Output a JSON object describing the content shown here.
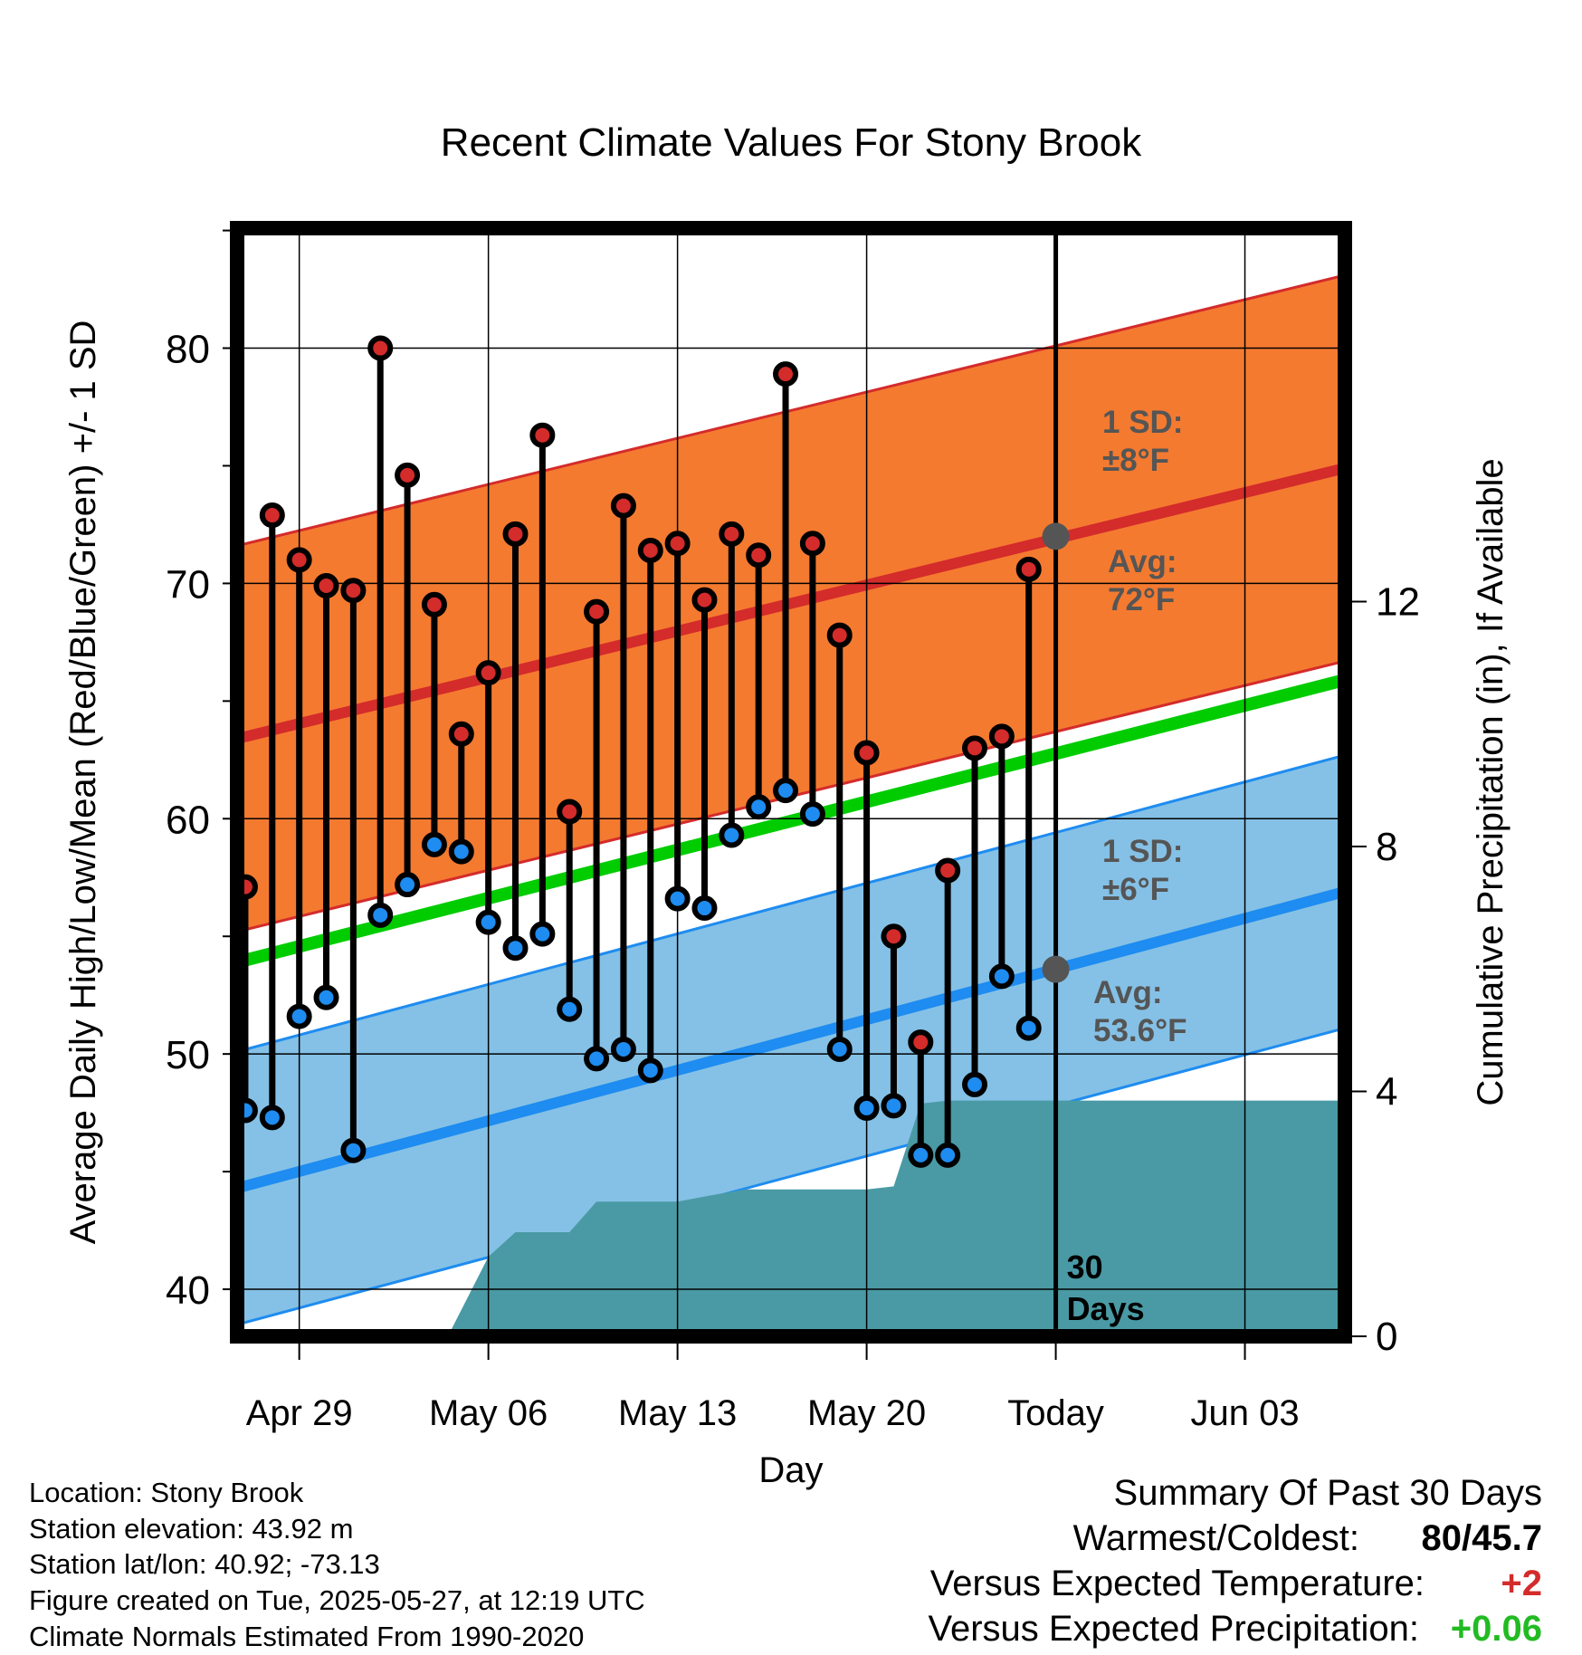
{
  "chart_data": {
    "type": "line",
    "title": "Recent Climate Values For Stony Brook",
    "xlabel": "Day",
    "ylabel": "Average Daily High/Low/Mean (Red/Blue/Green) +/- 1 SD",
    "y2label": "Cumulative Precipitation (in), If Available",
    "x_tick_labels": [
      "Apr 29",
      "May 06",
      "May 13",
      "May 20",
      "Today",
      "Jun 03"
    ],
    "x_tick_days": [
      2,
      9,
      16,
      23,
      30,
      37
    ],
    "xlim": [
      -0.3,
      40.7
    ],
    "y_ticks": [
      40,
      50,
      60,
      70,
      80
    ],
    "ylim": [
      38,
      85.1
    ],
    "y2_ticks": [
      0,
      4,
      8,
      12
    ],
    "y2lim": [
      0,
      18.1
    ],
    "today_day": 30,
    "grid": true,
    "today_label": "30\nDays",
    "daily_high": [
      57.1,
      72.9,
      71.0,
      69.9,
      69.7,
      80.0,
      74.6,
      69.1,
      63.6,
      66.2,
      72.1,
      76.3,
      60.3,
      68.8,
      73.3,
      71.4,
      71.7,
      69.3,
      72.1,
      71.2,
      78.9,
      71.7,
      67.8,
      62.8,
      55.0,
      50.5,
      57.8,
      63.0,
      63.5,
      70.6
    ],
    "daily_low": [
      47.6,
      47.3,
      51.6,
      52.4,
      45.9,
      55.9,
      57.2,
      58.9,
      58.6,
      55.6,
      54.5,
      55.1,
      51.9,
      49.8,
      50.2,
      49.3,
      56.6,
      56.2,
      59.3,
      60.5,
      61.2,
      60.2,
      50.2,
      47.7,
      47.8,
      45.7,
      45.7,
      48.7,
      53.3,
      51.1
    ],
    "normals": {
      "high_avg": [
        63.4,
        74.9
      ],
      "high_sd": 8.2,
      "low_avg": [
        44.3,
        56.9
      ],
      "low_sd": 5.8,
      "mean_avg": [
        53.9,
        65.9
      ]
    },
    "cumulative_precip": [
      [
        7.5,
        0
      ],
      [
        9,
        1.3
      ],
      [
        10,
        1.7
      ],
      [
        12,
        1.7
      ],
      [
        13,
        2.2
      ],
      [
        16,
        2.2
      ],
      [
        17.2,
        2.3
      ],
      [
        18.5,
        2.4
      ],
      [
        23,
        2.4
      ],
      [
        24,
        2.45
      ],
      [
        25,
        3.8
      ],
      [
        26,
        3.85
      ],
      [
        40.7,
        3.85
      ]
    ],
    "annotations": {
      "high_sd_label": "1 SD:",
      "high_sd_value": "±8°F",
      "high_avg_label": "Avg:",
      "high_avg_value": "72°F",
      "high_avg_today": 72,
      "low_sd_label": "1 SD:",
      "low_sd_value": "±6°F",
      "low_avg_label": "Avg:",
      "low_avg_value": "53.6°F",
      "low_avg_today": 53.6
    }
  },
  "info": {
    "location": "Location: Stony Brook",
    "elevation": "Station elevation: 43.92 m",
    "latlon": "Station lat/lon: 40.92; -73.13",
    "created": "Figure created on Tue, 2025-05-27, at 12:19 UTC",
    "normals": "Climate Normals Estimated From 1990-2020"
  },
  "summary": {
    "title": "Summary Of Past 30 Days",
    "warm_cold_label": "Warmest/Coldest:",
    "warm_cold_value": "80/45.7",
    "temp_label": "Versus Expected Temperature:",
    "temp_value": "+2",
    "precip_label": "Versus Expected Precipitation:",
    "precip_value": "+0.06"
  },
  "colors": {
    "high": "#d42b2b",
    "low": "#1e8cf0",
    "mean": "#00cc00",
    "high_band": "#f47a30",
    "low_band": "#85c1e6",
    "precip": "#4a9aa5",
    "avg_marker": "#555555",
    "annotation": "#555555",
    "positive_temp": "#d42b2b",
    "positive_precip": "#22bb22"
  }
}
